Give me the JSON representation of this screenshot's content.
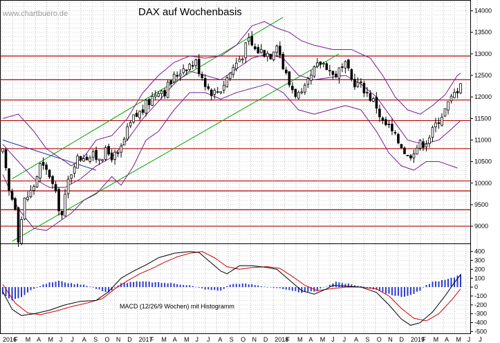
{
  "watermark": "www.chartbuero.de",
  "chart_data": [
    {
      "type": "candlestick",
      "title": "DAX auf Wochenbasis",
      "ylim": [
        8600,
        14250
      ],
      "y_ticks": [
        9000,
        9500,
        10000,
        10500,
        11000,
        11500,
        12000,
        12500,
        13000,
        13500,
        14000
      ],
      "x_labels": [
        "2016",
        "F",
        "M",
        "A",
        "M",
        "J",
        "J",
        "A",
        "S",
        "O",
        "N",
        "D",
        "2017",
        "F",
        "M",
        "A",
        "M",
        "J",
        "J",
        "A",
        "S",
        "O",
        "N",
        "D",
        "2018",
        "F",
        "M",
        "A",
        "M",
        "J",
        "J",
        "A",
        "S",
        "O",
        "N",
        "D",
        "2019",
        "F",
        "M",
        "A",
        "M",
        "J",
        "J"
      ],
      "horizontal_levels": [
        9000,
        9380,
        9820,
        10050,
        10800,
        11450,
        11930,
        12400,
        12950
      ],
      "trend_channel": {
        "upper": [
          [
            3,
            10100
          ],
          [
            90,
            13850
          ]
        ],
        "lower": [
          [
            3,
            8650
          ],
          [
            108,
            13000
          ]
        ]
      },
      "downtrend_line": [
        [
          0,
          11000
        ],
        [
          30,
          10300
        ]
      ],
      "price_anchors": [
        [
          0,
          10700
        ],
        [
          2,
          9800
        ],
        [
          4,
          9500
        ],
        [
          5,
          8750
        ],
        [
          7,
          9600
        ],
        [
          9,
          9800
        ],
        [
          10,
          9950
        ],
        [
          12,
          10400
        ],
        [
          15,
          10200
        ],
        [
          17,
          9700
        ],
        [
          19,
          9250
        ],
        [
          21,
          10050
        ],
        [
          23,
          10500
        ],
        [
          26,
          10650
        ],
        [
          30,
          10600
        ],
        [
          33,
          10700
        ],
        [
          37,
          10600
        ],
        [
          40,
          11200
        ],
        [
          42,
          11500
        ],
        [
          45,
          11700
        ],
        [
          48,
          12000
        ],
        [
          50,
          12200
        ],
        [
          52,
          12150
        ],
        [
          55,
          12450
        ],
        [
          58,
          12700
        ],
        [
          62,
          12800
        ],
        [
          64,
          12500
        ],
        [
          66,
          12200
        ],
        [
          68,
          12100
        ],
        [
          70,
          12200
        ],
        [
          72,
          12450
        ],
        [
          75,
          12800
        ],
        [
          77,
          13000
        ],
        [
          79,
          13300
        ],
        [
          81,
          13100
        ],
        [
          84,
          13050
        ],
        [
          86,
          13000
        ],
        [
          88,
          13300
        ],
        [
          89,
          13000
        ],
        [
          90,
          12700
        ],
        [
          92,
          12300
        ],
        [
          94,
          12100
        ],
        [
          96,
          12000
        ],
        [
          98,
          12300
        ],
        [
          100,
          12600
        ],
        [
          102,
          12800
        ],
        [
          104,
          12750
        ],
        [
          106,
          12500
        ],
        [
          108,
          12600
        ],
        [
          110,
          12700
        ],
        [
          112,
          12400
        ],
        [
          114,
          12300
        ],
        [
          116,
          12200
        ],
        [
          118,
          12000
        ],
        [
          120,
          11800
        ],
        [
          122,
          11400
        ],
        [
          124,
          11300
        ],
        [
          126,
          11050
        ],
        [
          128,
          10900
        ],
        [
          130,
          10600
        ],
        [
          132,
          10800
        ],
        [
          134,
          10900
        ],
        [
          136,
          11000
        ],
        [
          138,
          11200
        ],
        [
          140,
          11500
        ],
        [
          142,
          11700
        ],
        [
          144,
          11950
        ],
        [
          146,
          12200
        ],
        [
          147,
          12400
        ]
      ],
      "bollinger_anchors": {
        "upper": [
          [
            0,
            11500
          ],
          [
            5,
            11600
          ],
          [
            10,
            11200
          ],
          [
            14,
            10800
          ],
          [
            18,
            10600
          ],
          [
            22,
            10400
          ],
          [
            26,
            10600
          ],
          [
            30,
            11000
          ],
          [
            35,
            11100
          ],
          [
            40,
            11500
          ],
          [
            45,
            12100
          ],
          [
            50,
            12500
          ],
          [
            55,
            12800
          ],
          [
            60,
            12950
          ],
          [
            65,
            12900
          ],
          [
            70,
            12950
          ],
          [
            75,
            13200
          ],
          [
            80,
            13650
          ],
          [
            84,
            13750
          ],
          [
            88,
            13600
          ],
          [
            92,
            13500
          ],
          [
            96,
            13300
          ],
          [
            100,
            13200
          ],
          [
            106,
            13100
          ],
          [
            112,
            13100
          ],
          [
            118,
            12900
          ],
          [
            122,
            12500
          ],
          [
            126,
            12000
          ],
          [
            130,
            11700
          ],
          [
            134,
            11600
          ],
          [
            138,
            11800
          ],
          [
            142,
            12050
          ],
          [
            146,
            12500
          ],
          [
            147,
            12550
          ]
        ],
        "middle": [
          [
            0,
            10900
          ],
          [
            5,
            10500
          ],
          [
            10,
            10100
          ],
          [
            15,
            9900
          ],
          [
            20,
            9900
          ],
          [
            25,
            10100
          ],
          [
            30,
            10400
          ],
          [
            35,
            10600
          ],
          [
            40,
            11000
          ],
          [
            45,
            11500
          ],
          [
            50,
            11900
          ],
          [
            55,
            12300
          ],
          [
            60,
            12600
          ],
          [
            65,
            12500
          ],
          [
            70,
            12400
          ],
          [
            75,
            12650
          ],
          [
            80,
            12900
          ],
          [
            85,
            13000
          ],
          [
            90,
            12900
          ],
          [
            95,
            12500
          ],
          [
            100,
            12400
          ],
          [
            105,
            12450
          ],
          [
            110,
            12500
          ],
          [
            115,
            12300
          ],
          [
            120,
            12000
          ],
          [
            125,
            11500
          ],
          [
            130,
            11000
          ],
          [
            135,
            10900
          ],
          [
            140,
            11000
          ],
          [
            144,
            11250
          ],
          [
            147,
            11450
          ]
        ],
        "lower": [
          [
            0,
            10200
          ],
          [
            5,
            9400
          ],
          [
            10,
            8950
          ],
          [
            14,
            8900
          ],
          [
            18,
            9100
          ],
          [
            22,
            9300
          ],
          [
            26,
            9600
          ],
          [
            30,
            9750
          ],
          [
            35,
            10150
          ],
          [
            38,
            9950
          ],
          [
            42,
            10400
          ],
          [
            46,
            11000
          ],
          [
            50,
            11200
          ],
          [
            55,
            11700
          ],
          [
            60,
            12100
          ],
          [
            65,
            12100
          ],
          [
            70,
            11950
          ],
          [
            75,
            12100
          ],
          [
            80,
            12200
          ],
          [
            85,
            12300
          ],
          [
            90,
            12100
          ],
          [
            95,
            11700
          ],
          [
            100,
            11600
          ],
          [
            105,
            11700
          ],
          [
            110,
            11800
          ],
          [
            115,
            11700
          ],
          [
            120,
            11200
          ],
          [
            124,
            10700
          ],
          [
            128,
            10400
          ],
          [
            132,
            10300
          ],
          [
            136,
            10500
          ],
          [
            140,
            10500
          ],
          [
            144,
            10400
          ],
          [
            146,
            10350
          ]
        ]
      }
    },
    {
      "type": "line+histogram",
      "label": "MACD (12/26/9 Wochen) mit Histogramm",
      "ylim": [
        -520,
        460
      ],
      "y_ticks": [
        -500,
        -400,
        -300,
        -200,
        -100,
        0,
        100,
        200,
        300,
        400
      ],
      "macd_anchors": [
        [
          0,
          -50
        ],
        [
          3,
          -250
        ],
        [
          6,
          -320
        ],
        [
          10,
          -300
        ],
        [
          15,
          -260
        ],
        [
          20,
          -200
        ],
        [
          25,
          -160
        ],
        [
          30,
          -150
        ],
        [
          34,
          -50
        ],
        [
          38,
          100
        ],
        [
          42,
          180
        ],
        [
          46,
          250
        ],
        [
          50,
          330
        ],
        [
          55,
          380
        ],
        [
          60,
          400
        ],
        [
          63,
          390
        ],
        [
          66,
          300
        ],
        [
          70,
          180
        ],
        [
          72,
          150
        ],
        [
          76,
          240
        ],
        [
          80,
          240
        ],
        [
          85,
          220
        ],
        [
          88,
          200
        ],
        [
          92,
          80
        ],
        [
          96,
          -40
        ],
        [
          100,
          -80
        ],
        [
          104,
          -20
        ],
        [
          106,
          20
        ],
        [
          110,
          10
        ],
        [
          115,
          0
        ],
        [
          120,
          -60
        ],
        [
          124,
          -200
        ],
        [
          128,
          -360
        ],
        [
          131,
          -430
        ],
        [
          134,
          -400
        ],
        [
          138,
          -280
        ],
        [
          142,
          -100
        ],
        [
          145,
          50
        ],
        [
          147,
          140
        ]
      ],
      "signal_anchors": [
        [
          0,
          30
        ],
        [
          4,
          -180
        ],
        [
          8,
          -290
        ],
        [
          12,
          -310
        ],
        [
          17,
          -270
        ],
        [
          22,
          -220
        ],
        [
          27,
          -180
        ],
        [
          32,
          -130
        ],
        [
          36,
          -20
        ],
        [
          40,
          70
        ],
        [
          44,
          150
        ],
        [
          48,
          210
        ],
        [
          52,
          280
        ],
        [
          56,
          340
        ],
        [
          60,
          380
        ],
        [
          64,
          400
        ],
        [
          68,
          330
        ],
        [
          72,
          230
        ],
        [
          76,
          200
        ],
        [
          80,
          220
        ],
        [
          85,
          230
        ],
        [
          89,
          210
        ],
        [
          93,
          120
        ],
        [
          97,
          20
        ],
        [
          101,
          -40
        ],
        [
          105,
          -20
        ],
        [
          110,
          0
        ],
        [
          115,
          0
        ],
        [
          120,
          -20
        ],
        [
          124,
          -100
        ],
        [
          128,
          -240
        ],
        [
          132,
          -350
        ],
        [
          136,
          -380
        ],
        [
          140,
          -300
        ],
        [
          144,
          -150
        ],
        [
          147,
          -20
        ]
      ],
      "histogram_anchors": [
        [
          0,
          -80
        ],
        [
          3,
          -150
        ],
        [
          6,
          -110
        ],
        [
          9,
          -30
        ],
        [
          12,
          10
        ],
        [
          14,
          40
        ],
        [
          18,
          70
        ],
        [
          22,
          40
        ],
        [
          26,
          30
        ],
        [
          30,
          -20
        ],
        [
          34,
          -60
        ],
        [
          38,
          40
        ],
        [
          42,
          60
        ],
        [
          46,
          60
        ],
        [
          50,
          50
        ],
        [
          55,
          40
        ],
        [
          60,
          20
        ],
        [
          63,
          -10
        ],
        [
          66,
          -30
        ],
        [
          70,
          -40
        ],
        [
          73,
          30
        ],
        [
          76,
          40
        ],
        [
          80,
          30
        ],
        [
          85,
          0
        ],
        [
          88,
          -10
        ],
        [
          92,
          -40
        ],
        [
          96,
          -60
        ],
        [
          100,
          -50
        ],
        [
          104,
          10
        ],
        [
          107,
          60
        ],
        [
          110,
          40
        ],
        [
          115,
          10
        ],
        [
          120,
          -30
        ],
        [
          124,
          -80
        ],
        [
          128,
          -110
        ],
        [
          131,
          -90
        ],
        [
          134,
          -40
        ],
        [
          136,
          20
        ],
        [
          138,
          60
        ],
        [
          142,
          80
        ],
        [
          145,
          110
        ],
        [
          147,
          150
        ]
      ]
    }
  ]
}
